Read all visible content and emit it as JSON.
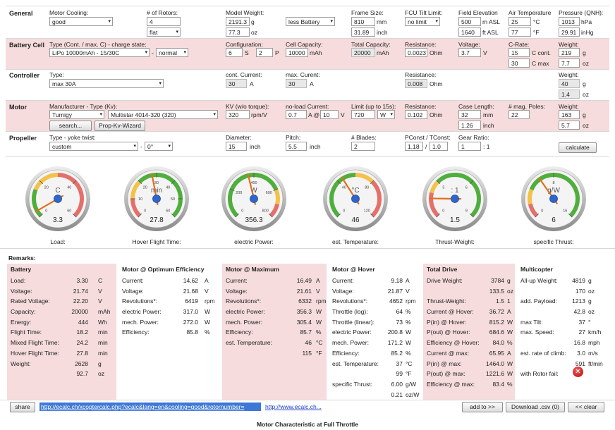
{
  "general": {
    "section_label": "General",
    "motor_cooling_label": "Motor Cooling:",
    "motor_cooling_value": "good",
    "rotors_label": "# of Rotors:",
    "rotors_value": "4",
    "frame_value": "flat",
    "model_weight_label": "Model Weight:",
    "model_weight_g": "2191.3",
    "model_weight_g_unit": "g",
    "model_weight_oz": "77.3",
    "model_weight_oz_unit": "oz",
    "weight_mode_value": "less Battery",
    "frame_size_label": "Frame Size:",
    "frame_size_mm": "810",
    "frame_size_mm_unit": "mm",
    "frame_size_inch": "31.89",
    "frame_size_inch_unit": "inch",
    "fcu_tilt_label": "FCU Tilt Limit:",
    "fcu_tilt_value": "no limit",
    "field_elev_label": "Field Elevation",
    "field_elev_m": "500",
    "field_elev_m_unit": "m ASL",
    "field_elev_ft": "1640",
    "field_elev_ft_unit": "ft ASL",
    "air_temp_label": "Air Temperature",
    "air_temp_c": "25",
    "air_temp_c_unit": "°C",
    "air_temp_f": "77",
    "air_temp_f_unit": "°F",
    "pressure_label": "Pressure (QNH):",
    "pressure_hpa": "1013",
    "pressure_hpa_unit": "hPa",
    "pressure_inhg": "29.91",
    "pressure_inhg_unit": "inHg"
  },
  "battery": {
    "section_label": "Battery Cell",
    "type_label": "Type (Cont. / max. C) - charge state:",
    "type_value": "LiPo 10000mAh - 15/30C",
    "dash": "-",
    "charge_value": "normal",
    "config_label": "Configuration:",
    "config_s": "6",
    "config_s_unit": "S",
    "config_p": "2",
    "config_p_unit": "P",
    "cell_cap_label": "Cell Capacity:",
    "cell_cap_value": "10000",
    "cell_cap_unit": "mAh",
    "total_cap_label": "Total Capacity:",
    "total_cap_value": "20000",
    "total_cap_unit": "mAh",
    "res_label": "Resistance:",
    "res_value": "0.0023",
    "res_unit": "Ohm",
    "volt_label": "Voltage:",
    "volt_value": "3.7",
    "volt_unit": "V",
    "crate_label": "C-Rate:",
    "crate_cont": "15",
    "crate_cont_unit": "C cont.",
    "crate_max": "30",
    "crate_max_unit": "C max",
    "weight_label": "Weight:",
    "weight_g": "219",
    "weight_g_unit": "g",
    "weight_oz": "7.7",
    "weight_oz_unit": "oz"
  },
  "controller": {
    "section_label": "Controller",
    "type_label": "Type:",
    "type_value": "max 30A",
    "cont_label": "cont. Current:",
    "cont_value": "30",
    "cont_unit": "A",
    "max_label": "max. Curent:",
    "max_value": "30",
    "max_unit": "A",
    "res_label": "Resistance:",
    "res_value": "0.008",
    "res_unit": "Ohm",
    "weight_label": "Weight:",
    "weight_g": "40",
    "weight_g_unit": "g",
    "weight_oz": "1.4",
    "weight_oz_unit": "oz"
  },
  "motor": {
    "section_label": "Motor",
    "mfr_label": "Manufacturer - Type (Kv):",
    "mfr_value": "Turnigy",
    "type_value": "Multistar 4014-320 (320)",
    "search_label": "search...",
    "wizard_label": "Prop-Kv-Wizard",
    "kv_label": "KV (w/o torque):",
    "kv_value": "320",
    "kv_unit": "rpm/V",
    "noload_label": "no-load Current:",
    "noload_a": "0.7",
    "noload_at": "A @",
    "noload_v": "10",
    "noload_v_unit": "V",
    "limit_label": "Limit (up to 15s):",
    "limit_value": "720",
    "limit_unit": "W",
    "res_label": "Resistance:",
    "res_value": "0.102",
    "res_unit": "Ohm",
    "case_label": "Case Length:",
    "case_mm": "32",
    "case_mm_unit": "mm",
    "case_inch": "1.26",
    "case_inch_unit": "inch",
    "poles_label": "# mag. Poles:",
    "poles_value": "22",
    "weight_label": "Weight:",
    "weight_g": "163",
    "weight_g_unit": "g",
    "weight_oz": "5.7",
    "weight_oz_unit": "oz"
  },
  "propeller": {
    "section_label": "Propeller",
    "type_label": "Type - yoke twist:",
    "type_value": "custom",
    "dash": "-",
    "twist_value": "0°",
    "diam_label": "Diameter:",
    "diam_value": "15",
    "diam_unit": "inch",
    "pitch_label": "Pitch:",
    "pitch_value": "5.5",
    "pitch_unit": "inch",
    "blades_label": "# Blades:",
    "blades_value": "2",
    "pconst_label": "PConst / TConst:",
    "pconst_value": "1.18",
    "pconst_sep": "/",
    "tconst_value": "1.0",
    "gear_label": "Gear Ratio:",
    "gear_value": "1",
    "gear_sep": ": 1",
    "calc_label": "calculate"
  },
  "gauges": [
    {
      "id": "load",
      "caption": "Load:",
      "value": "3.3",
      "unit": "C",
      "ticks": [
        "0",
        "20",
        "40",
        "60"
      ],
      "needle_frac": 0.055,
      "green": [
        0.0,
        0.25
      ],
      "yellow": [
        0.25,
        0.5
      ],
      "red": [
        0.5,
        1.0
      ]
    },
    {
      "id": "hover",
      "caption": "Hover Flight Time:",
      "value": "27.8",
      "unit": "min",
      "ticks": [
        "0",
        "10",
        "20",
        "30",
        "40",
        "50",
        "60"
      ],
      "needle_frac": 0.46,
      "green": [
        0.33,
        1.0
      ],
      "yellow": [
        0.17,
        0.33
      ],
      "red": [
        0.0,
        0.17
      ]
    },
    {
      "id": "power",
      "caption": "electric Power:",
      "value": "356.3",
      "unit": "W",
      "ticks": [
        "0",
        "200",
        "400",
        "600",
        "800"
      ],
      "needle_frac": 0.45,
      "green": [
        0.0,
        0.75
      ],
      "yellow": [
        0.75,
        0.88
      ],
      "red": [
        0.88,
        1.0
      ]
    },
    {
      "id": "temp",
      "caption": "est. Temperature:",
      "value": "46",
      "unit": "°C",
      "ticks": [
        "0",
        "40",
        "80",
        "120"
      ],
      "needle_frac": 0.38,
      "green": [
        0.0,
        0.5
      ],
      "yellow": [
        0.5,
        0.67
      ],
      "red": [
        0.67,
        1.0
      ]
    },
    {
      "id": "tw",
      "caption": "Thrust-Weight:",
      "value": "1.5",
      "unit": ": 1",
      "ticks": [
        "0",
        "3",
        "6",
        "9"
      ],
      "needle_frac": 0.17,
      "green": [
        0.33,
        1.0
      ],
      "yellow": [
        0.22,
        0.33
      ],
      "red": [
        0.0,
        0.22
      ]
    },
    {
      "id": "thrust",
      "caption": "specific Thrust:",
      "value": "6",
      "unit": "g/W",
      "ticks": [
        "0",
        "8",
        "16"
      ],
      "needle_frac": 0.37,
      "green": [
        0.25,
        1.0
      ],
      "yellow": [
        0.12,
        0.25
      ],
      "red": [
        0.0,
        0.12
      ]
    }
  ],
  "remarks_label": "Remarks:",
  "remarks": [
    {
      "title": "Battery",
      "rows": [
        [
          "Load:",
          "3.30",
          "C"
        ],
        [
          "Voltage:",
          "21.74",
          "V"
        ],
        [
          "Rated Voltage:",
          "22.20",
          "V"
        ],
        [
          "Capacity:",
          "20000",
          "mAh"
        ],
        [
          "Energy:",
          "444",
          "Wh"
        ],
        [
          "Flight Time:",
          "18.2",
          "min"
        ],
        [
          "Mixed Flight Time:",
          "24.2",
          "min"
        ],
        [
          "Hover Flight Time:",
          "27.8",
          "min"
        ],
        [
          "Weight:",
          "2628",
          "g"
        ],
        [
          "",
          "92.7",
          "oz"
        ]
      ]
    },
    {
      "title": "Motor @ Optimum Efficiency",
      "rows": [
        [
          "Current:",
          "14.62",
          "A"
        ],
        [
          "Voltage:",
          "21.68",
          "V"
        ],
        [
          "Revolutions*:",
          "6419",
          "rpm"
        ],
        [
          "electric Power:",
          "317.0",
          "W"
        ],
        [
          "mech. Power:",
          "272.0",
          "W"
        ],
        [
          "Efficiency:",
          "85.8",
          "%"
        ]
      ]
    },
    {
      "title": "Motor @ Maximum",
      "rows": [
        [
          "Current:",
          "16.49",
          "A"
        ],
        [
          "Voltage:",
          "21.61",
          "V"
        ],
        [
          "Revolutions*:",
          "6332",
          "rpm"
        ],
        [
          "electric Power:",
          "356.3",
          "W"
        ],
        [
          "mech. Power:",
          "305.4",
          "W"
        ],
        [
          "Efficiency:",
          "85.7",
          "%"
        ],
        [
          "est. Temperature:",
          "46",
          "°C"
        ],
        [
          "",
          "115",
          "°F"
        ]
      ]
    },
    {
      "title": "Motor @ Hover",
      "rows": [
        [
          "Current:",
          "9.18",
          "A"
        ],
        [
          "Voltage:",
          "21.87",
          "V"
        ],
        [
          "Revolutions*:",
          "4652",
          "rpm"
        ],
        [
          "Throttle (log):",
          "64",
          "%"
        ],
        [
          "Throttle (linear):",
          "73",
          "%"
        ],
        [
          "electric Power:",
          "200.8",
          "W"
        ],
        [
          "mech. Power:",
          "171.2",
          "W"
        ],
        [
          "Efficiency:",
          "85.2",
          "%"
        ],
        [
          "est. Temperature:",
          "37",
          "°C"
        ],
        [
          "",
          "99",
          "°F"
        ],
        [
          "specific Thrust:",
          "6.00",
          "g/W"
        ],
        [
          "",
          "0.21",
          "oz/W"
        ]
      ]
    },
    {
      "title": "Total Drive",
      "rows": [
        [
          "Drive Weight:",
          "3784",
          "g"
        ],
        [
          "",
          "133.5",
          "oz"
        ],
        [
          "Thrust-Weight:",
          "1.5",
          "1"
        ],
        [
          "Current @ Hover:",
          "36.72",
          "A"
        ],
        [
          "P(in) @ Hover:",
          "815.2",
          "W"
        ],
        [
          "P(out) @ Hover:",
          "684.6",
          "W"
        ],
        [
          "Efficiency @ Hover:",
          "84.0",
          "%"
        ],
        [
          "Current @ max:",
          "65.95",
          "A"
        ],
        [
          "P(in) @ max:",
          "1464.0",
          "W"
        ],
        [
          "P(out) @ max:",
          "1221.6",
          "W"
        ],
        [
          "Efficiency @ max:",
          "83.4",
          "%"
        ]
      ]
    },
    {
      "title": "Multicopter",
      "rows": [
        [
          "All-up Weight:",
          "4819",
          "g"
        ],
        [
          "",
          "170",
          "oz"
        ],
        [
          "add. Payload:",
          "1213",
          "g"
        ],
        [
          "",
          "42.8",
          "oz"
        ],
        [
          "max Tilt:",
          "37",
          "°"
        ],
        [
          "max. Speed:",
          "27",
          "km/h"
        ],
        [
          "",
          "16.8",
          "mph"
        ],
        [
          "est. rate of climb:",
          "3.0",
          "m/s"
        ],
        [
          "",
          "591",
          "ft/min"
        ],
        [
          "with Rotor fail:",
          "",
          ""
        ]
      ]
    }
  ],
  "footer": {
    "share_label": "share",
    "share_url": "http://ecalc.ch/xcoptercalc.php?ecalc&lang=en&cooling=good&rotornumber=",
    "site_link": "http://www.ecalc.ch...",
    "add_label": "add to >>",
    "download_label": "Download .csv (0)",
    "clear_label": "<< clear"
  },
  "bottom_title": "Motor Characteristic at Full Throttle"
}
